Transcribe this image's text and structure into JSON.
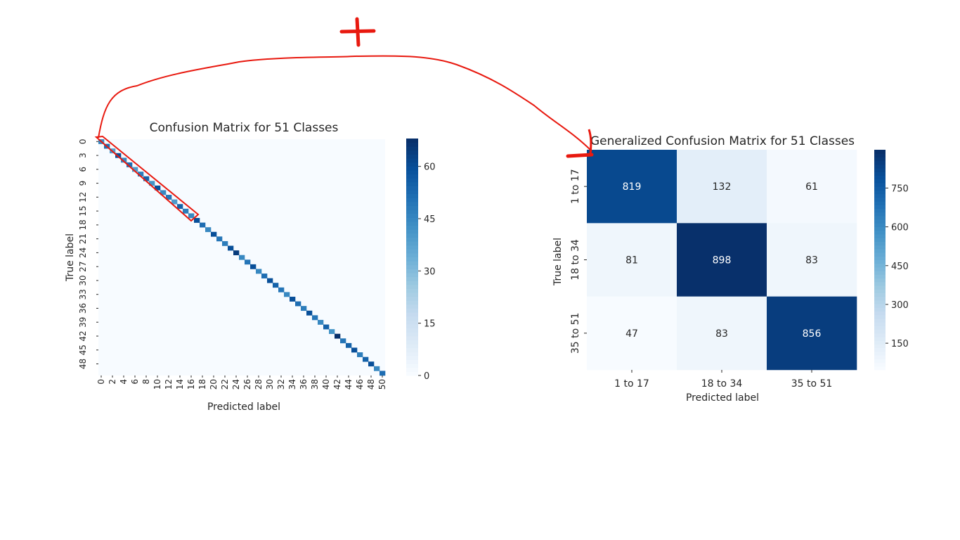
{
  "chart_data": [
    {
      "type": "heatmap",
      "title": "Confusion Matrix for 51 Classes",
      "xlabel": "Predicted label",
      "ylabel": "True label",
      "n_classes": 51,
      "x_tick_labels": [
        "0",
        "2",
        "4",
        "6",
        "8",
        "10",
        "12",
        "14",
        "16",
        "18",
        "20",
        "22",
        "24",
        "26",
        "28",
        "30",
        "32",
        "34",
        "36",
        "38",
        "40",
        "42",
        "44",
        "46",
        "48",
        "50"
      ],
      "y_tick_labels": [
        "0",
        "3",
        "6",
        "9",
        "12",
        "15",
        "18",
        "21",
        "24",
        "27",
        "30",
        "33",
        "36",
        "39",
        "42",
        "45",
        "48"
      ],
      "diagonal_values": [
        45,
        52,
        40,
        60,
        45,
        52,
        40,
        48,
        55,
        42,
        60,
        45,
        50,
        40,
        55,
        48,
        45,
        60,
        52,
        45,
        60,
        50,
        48,
        60,
        65,
        45,
        50,
        60,
        45,
        52,
        60,
        55,
        50,
        45,
        60,
        52,
        48,
        60,
        50,
        45,
        55,
        42,
        68,
        50,
        55,
        60,
        48,
        55,
        60,
        45,
        52
      ],
      "off_diagonal_values": "near 0",
      "colorbar": {
        "ticks": [
          "0",
          "15",
          "30",
          "45",
          "60"
        ],
        "min": 0,
        "max": 68
      },
      "colormap": "Blues"
    },
    {
      "type": "heatmap",
      "title": "Generalized Confusion Matrix for 51 Classes",
      "xlabel": "Predicted label",
      "ylabel": "True label",
      "categories": [
        "1 to 17",
        "18 to 34",
        "35 to 51"
      ],
      "matrix": [
        [
          819,
          132,
          61
        ],
        [
          81,
          898,
          83
        ],
        [
          47,
          83,
          856
        ]
      ],
      "colorbar": {
        "ticks": [
          "150",
          "300",
          "450",
          "600",
          "750"
        ],
        "min": 47,
        "max": 898
      },
      "colormap": "Blues"
    }
  ],
  "annotations": {
    "plus_sign": "+",
    "minus_sign": "−",
    "color": "#e8190f"
  }
}
